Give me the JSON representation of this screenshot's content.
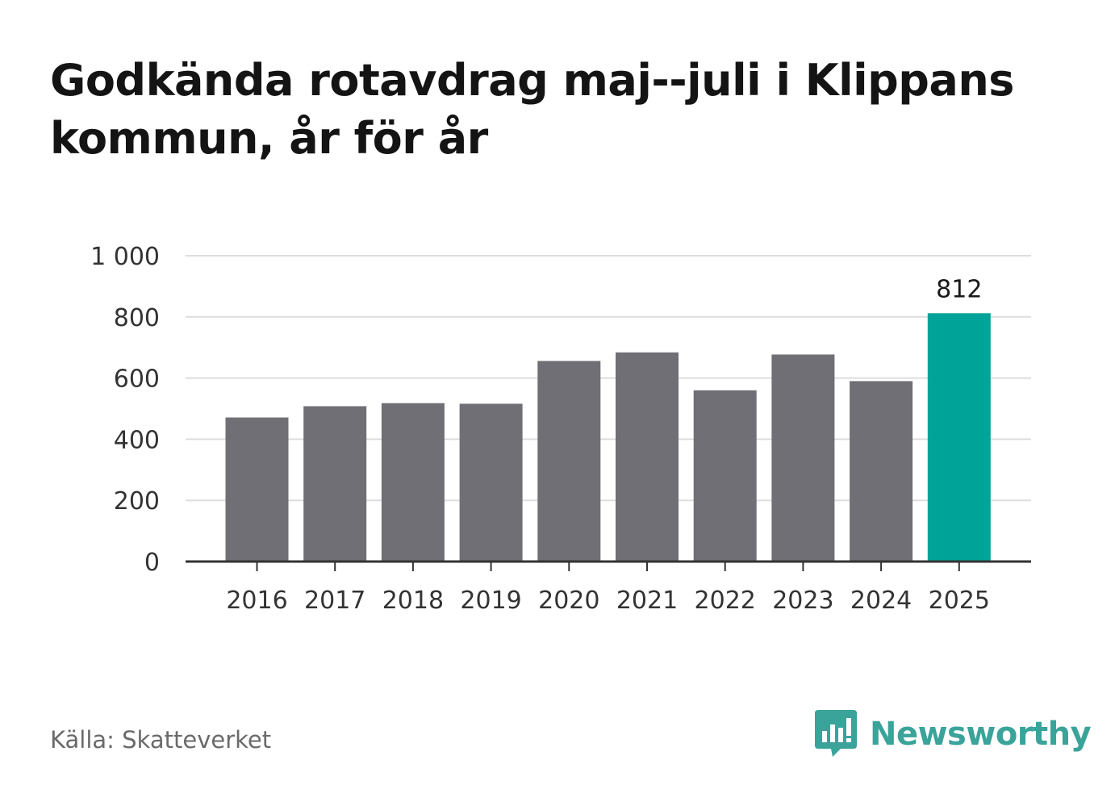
{
  "title": "Godkända rotavdrag maj--juli i Klippans kommun, år för år",
  "source": "Källa: Skatteverket",
  "brand": "Newsworthy",
  "colors": {
    "bar": "#706f75",
    "highlight": "#00a398",
    "grid": "#dddddd",
    "axis": "#333333",
    "logo": "#3aa39a"
  },
  "chart_data": {
    "type": "bar",
    "categories": [
      "2016",
      "2017",
      "2018",
      "2019",
      "2020",
      "2021",
      "2022",
      "2023",
      "2024",
      "2025"
    ],
    "values": [
      471,
      508,
      518,
      516,
      656,
      684,
      560,
      677,
      590,
      812
    ],
    "highlight_index": 9,
    "data_labels": [
      {
        "index": 9,
        "text": "812"
      }
    ],
    "ylim": [
      0,
      1000
    ],
    "yticks": [
      0,
      200,
      400,
      600,
      800,
      1000
    ],
    "ytick_labels": [
      "0",
      "200",
      "400",
      "600",
      "800",
      "1 000"
    ],
    "grid": true,
    "xlabel": "",
    "ylabel": ""
  }
}
